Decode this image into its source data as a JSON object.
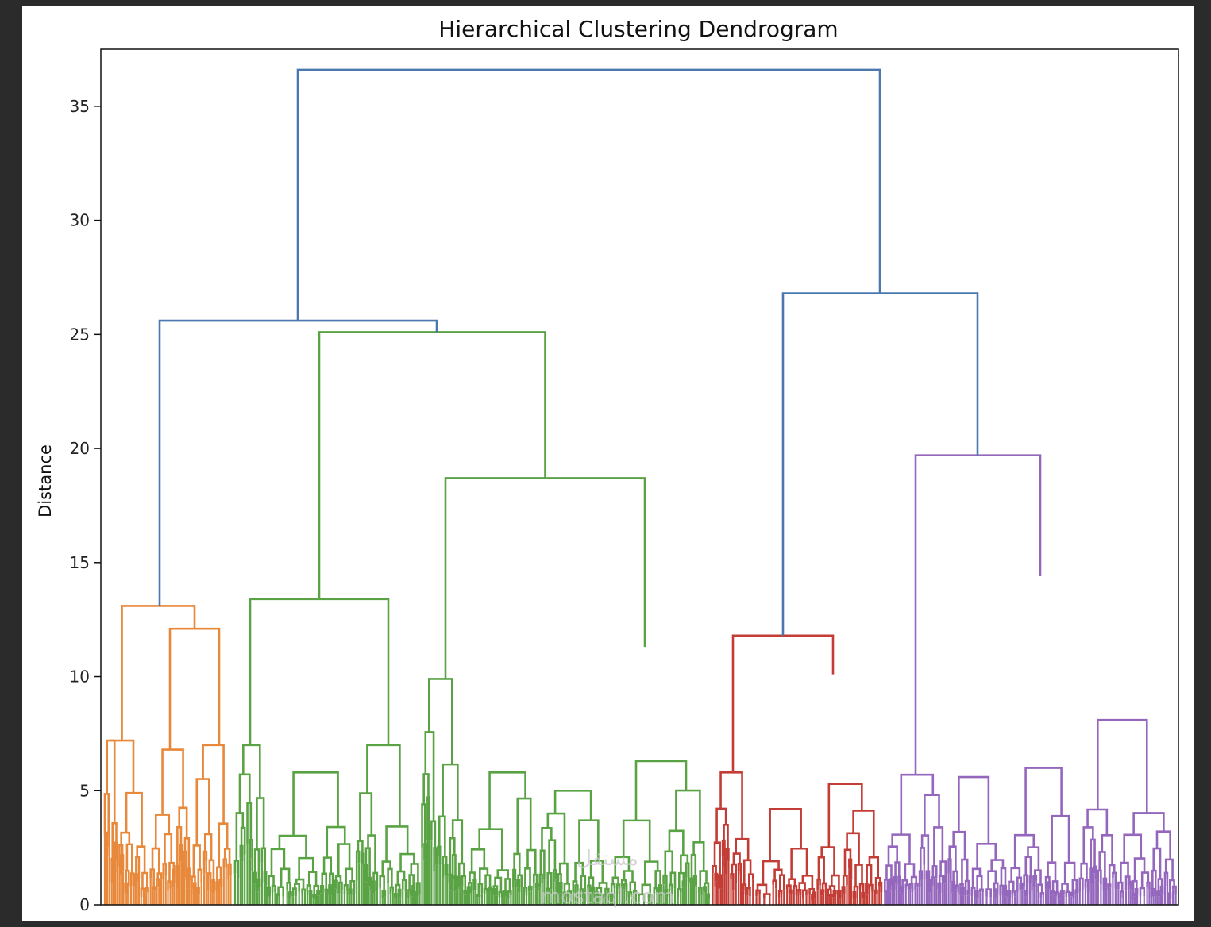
{
  "chart_data": {
    "type": "dendrogram",
    "title": "Hierarchical Clustering Dendrogram",
    "xlabel": "",
    "ylabel": "Distance",
    "ylim": [
      0,
      37.5
    ],
    "yticks": [
      0,
      5,
      10,
      15,
      20,
      25,
      30,
      35
    ],
    "grid": false,
    "clusters": [
      {
        "color": "#e8883a",
        "merge_height": 13.1
      },
      {
        "color": "#5aa345",
        "merge_height": 25.1
      },
      {
        "color": "#c33d36",
        "merge_height": 11.8
      },
      {
        "color": "#9467bd",
        "merge_height": 19.7
      }
    ],
    "links_color": "#4c78b0",
    "links": [
      {
        "height": 36.6,
        "note": "root"
      },
      {
        "height": 25.6
      },
      {
        "height": 26.8
      },
      {
        "height": 25.1
      },
      {
        "height": 19.7
      },
      {
        "height": 18.7
      },
      {
        "height": 14.4
      },
      {
        "height": 13.4
      },
      {
        "height": 13.1
      },
      {
        "height": 12.1
      },
      {
        "height": 11.8
      },
      {
        "height": 11.3
      },
      {
        "height": 10.4
      },
      {
        "height": 10.1
      },
      {
        "height": 9.9
      },
      {
        "height": 8.1
      },
      {
        "height": 7.2
      },
      {
        "height": 7.0
      },
      {
        "height": 7.0
      }
    ]
  },
  "watermark": {
    "line1": "مستقل",
    "line2": "mostaql.com"
  }
}
